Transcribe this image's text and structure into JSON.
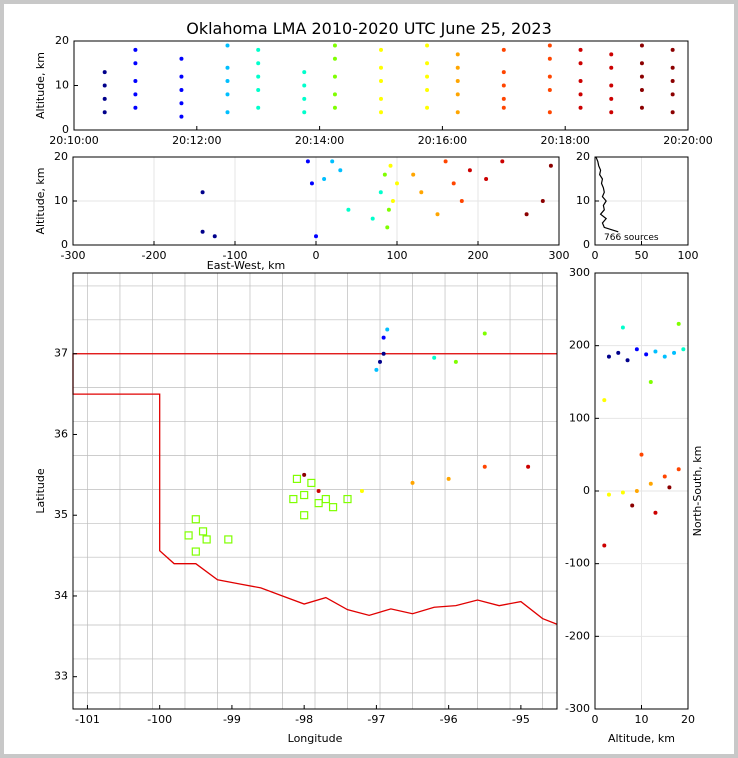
{
  "title": "Oklahoma LMA 2010-2020 UTC June 25, 2023",
  "chart_data": [
    {
      "type": "scatter",
      "panel": "time-height",
      "xlabel": "",
      "ylabel": "Altitude, km",
      "xlim": [
        "20:10:00",
        "20:20:00"
      ],
      "ylim": [
        0,
        20
      ],
      "xticks": [
        "20:10:00",
        "20:12:00",
        "20:14:00",
        "20:16:00",
        "20:18:00",
        "20:20:00"
      ],
      "yticks": [
        0,
        10,
        20
      ],
      "color_by": "time",
      "colors": [
        "#00008b",
        "#0000ff",
        "#00bfff",
        "#00ffcc",
        "#7fff00",
        "#ffff00",
        "#ffa500",
        "#ff4500",
        "#cc0000",
        "#8b0000"
      ],
      "columns": [
        {
          "x": "20:10:30",
          "y": [
            4,
            7,
            10,
            13
          ]
        },
        {
          "x": "20:11:00",
          "y": [
            5,
            8,
            11,
            15,
            18
          ]
        },
        {
          "x": "20:11:45",
          "y": [
            3,
            6,
            9,
            12,
            16
          ]
        },
        {
          "x": "20:12:30",
          "y": [
            4,
            8,
            11,
            14,
            19
          ]
        },
        {
          "x": "20:13:00",
          "y": [
            5,
            9,
            12,
            15,
            18
          ]
        },
        {
          "x": "20:13:45",
          "y": [
            4,
            7,
            10,
            13
          ]
        },
        {
          "x": "20:14:15",
          "y": [
            5,
            8,
            12,
            16,
            19
          ]
        },
        {
          "x": "20:15:00",
          "y": [
            4,
            7,
            11,
            14,
            18
          ]
        },
        {
          "x": "20:15:45",
          "y": [
            5,
            9,
            12,
            15,
            19
          ]
        },
        {
          "x": "20:16:15",
          "y": [
            4,
            8,
            11,
            14,
            17
          ]
        },
        {
          "x": "20:17:00",
          "y": [
            5,
            7,
            10,
            13,
            18
          ]
        },
        {
          "x": "20:17:45",
          "y": [
            4,
            9,
            12,
            16,
            19
          ]
        },
        {
          "x": "20:18:15",
          "y": [
            5,
            8,
            11,
            15,
            18
          ]
        },
        {
          "x": "20:18:45",
          "y": [
            4,
            7,
            10,
            14,
            17
          ]
        },
        {
          "x": "20:19:15",
          "y": [
            5,
            9,
            12,
            15,
            19
          ]
        },
        {
          "x": "20:19:45",
          "y": [
            4,
            8,
            11,
            14,
            18
          ]
        }
      ]
    },
    {
      "type": "scatter",
      "panel": "east-west-height",
      "xlabel": "East-West, km",
      "ylabel": "Altitude, km",
      "xlim": [
        -300,
        300
      ],
      "ylim": [
        0,
        20
      ],
      "xticks": [
        -300,
        -200,
        -100,
        0,
        100,
        200,
        300
      ],
      "yticks": [
        0,
        10,
        20
      ],
      "points": [
        {
          "x": -140,
          "y": 12
        },
        {
          "x": -140,
          "y": 3
        },
        {
          "x": -125,
          "y": 2
        },
        {
          "x": -10,
          "y": 19
        },
        {
          "x": -5,
          "y": 14
        },
        {
          "x": 0,
          "y": 2
        },
        {
          "x": 10,
          "y": 15
        },
        {
          "x": 20,
          "y": 19
        },
        {
          "x": 30,
          "y": 17
        },
        {
          "x": 40,
          "y": 8
        },
        {
          "x": 70,
          "y": 6
        },
        {
          "x": 80,
          "y": 12
        },
        {
          "x": 85,
          "y": 16
        },
        {
          "x": 88,
          "y": 4
        },
        {
          "x": 90,
          "y": 8
        },
        {
          "x": 92,
          "y": 18
        },
        {
          "x": 95,
          "y": 10
        },
        {
          "x": 100,
          "y": 14
        },
        {
          "x": 120,
          "y": 16
        },
        {
          "x": 130,
          "y": 12
        },
        {
          "x": 150,
          "y": 7
        },
        {
          "x": 160,
          "y": 19
        },
        {
          "x": 170,
          "y": 14
        },
        {
          "x": 180,
          "y": 10
        },
        {
          "x": 190,
          "y": 17
        },
        {
          "x": 210,
          "y": 15
        },
        {
          "x": 230,
          "y": 19
        },
        {
          "x": 260,
          "y": 7
        },
        {
          "x": 280,
          "y": 10
        },
        {
          "x": 290,
          "y": 18
        }
      ]
    },
    {
      "type": "line",
      "panel": "altitude-histogram",
      "xlim": [
        0,
        100
      ],
      "ylim": [
        0,
        20
      ],
      "xticks": [
        0,
        50,
        100
      ],
      "yticks": [
        0,
        10,
        20
      ],
      "annotation": "766 sources",
      "altitude": [
        3,
        4,
        5,
        6,
        7,
        8,
        9,
        10,
        11,
        12,
        13,
        14,
        15,
        16,
        17,
        18,
        19,
        20
      ],
      "count": [
        25,
        10,
        8,
        12,
        6,
        10,
        9,
        12,
        8,
        10,
        9,
        7,
        8,
        5,
        6,
        4,
        3,
        1
      ]
    },
    {
      "type": "scatter",
      "panel": "plan-view",
      "xlabel": "Longitude",
      "ylabel": "Latitude",
      "xlim": [
        -101.2,
        -94.5
      ],
      "ylim": [
        32.6,
        38.0
      ],
      "xticks": [
        -101,
        -100,
        -99,
        -98,
        -97,
        -96,
        -95
      ],
      "yticks": [
        33,
        34,
        35,
        36,
        37
      ],
      "points": [
        {
          "x": -96.9,
          "y": 37.0
        },
        {
          "x": -96.95,
          "y": 36.9
        },
        {
          "x": -96.9,
          "y": 37.2
        },
        {
          "x": -96.85,
          "y": 37.3
        },
        {
          "x": -97.0,
          "y": 36.8
        },
        {
          "x": -96.2,
          "y": 36.95
        },
        {
          "x": -95.9,
          "y": 36.9
        },
        {
          "x": -95.5,
          "y": 37.25
        },
        {
          "x": -97.2,
          "y": 35.3
        },
        {
          "x": -96.5,
          "y": 35.4
        },
        {
          "x": -96.0,
          "y": 35.45
        },
        {
          "x": -95.5,
          "y": 35.6
        },
        {
          "x": -94.9,
          "y": 35.6
        },
        {
          "x": -97.8,
          "y": 35.3
        },
        {
          "x": -98.0,
          "y": 35.5
        }
      ],
      "stations": [
        {
          "x": -98.1,
          "y": 35.45
        },
        {
          "x": -97.9,
          "y": 35.4
        },
        {
          "x": -98.0,
          "y": 35.25
        },
        {
          "x": -97.7,
          "y": 35.2
        },
        {
          "x": -97.6,
          "y": 35.1
        },
        {
          "x": -97.4,
          "y": 35.2
        },
        {
          "x": -97.8,
          "y": 35.15
        },
        {
          "x": -98.15,
          "y": 35.2
        },
        {
          "x": -98.0,
          "y": 35.0
        },
        {
          "x": -99.5,
          "y": 34.95
        },
        {
          "x": -99.4,
          "y": 34.8
        },
        {
          "x": -99.6,
          "y": 34.75
        },
        {
          "x": -99.35,
          "y": 34.7
        },
        {
          "x": -99.5,
          "y": 34.55
        },
        {
          "x": -99.05,
          "y": 34.7
        }
      ]
    },
    {
      "type": "scatter",
      "panel": "north-south-height",
      "xlabel": "Altitude, km",
      "ylabel": "North-South, km",
      "xlim": [
        0,
        20
      ],
      "ylim": [
        -300,
        300
      ],
      "xticks": [
        0,
        10,
        20
      ],
      "yticks": [
        -300,
        -200,
        -100,
        0,
        100,
        200,
        300
      ],
      "points": [
        {
          "x": 3,
          "y": 185
        },
        {
          "x": 5,
          "y": 190
        },
        {
          "x": 7,
          "y": 180
        },
        {
          "x": 9,
          "y": 195
        },
        {
          "x": 11,
          "y": 188
        },
        {
          "x": 13,
          "y": 192
        },
        {
          "x": 15,
          "y": 185
        },
        {
          "x": 17,
          "y": 190
        },
        {
          "x": 19,
          "y": 195
        },
        {
          "x": 6,
          "y": 225
        },
        {
          "x": 12,
          "y": 150
        },
        {
          "x": 18,
          "y": 230
        },
        {
          "x": 2,
          "y": 125
        },
        {
          "x": 3,
          "y": -5
        },
        {
          "x": 6,
          "y": -2
        },
        {
          "x": 9,
          "y": 0
        },
        {
          "x": 12,
          "y": 10
        },
        {
          "x": 15,
          "y": 20
        },
        {
          "x": 18,
          "y": 30
        },
        {
          "x": 10,
          "y": 50
        },
        {
          "x": 13,
          "y": -30
        },
        {
          "x": 2,
          "y": -75
        },
        {
          "x": 8,
          "y": -20
        },
        {
          "x": 16,
          "y": 5
        }
      ]
    }
  ]
}
